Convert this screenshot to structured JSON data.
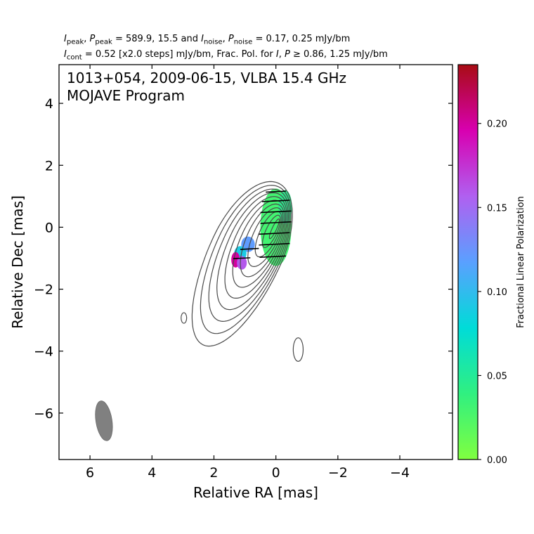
{
  "header": {
    "line1": {
      "i_peak_sym": "I",
      "i_peak_sub": "peak",
      "p_peak_sym": "P",
      "p_peak_sub": "peak",
      "peak_values": "= 589.9, 15.5 and",
      "i_noise_sym": "I",
      "i_noise_sub": "noise",
      "p_noise_sym": "P",
      "p_noise_sub": "noise",
      "noise_values": "= 0.17, 0.25 mJy/bm"
    },
    "line2": {
      "i_cont_sym": "I",
      "i_cont_sub": "cont",
      "cont_text": "= 0.52 [x2.0 steps] mJy/bm, Frac. Pol. for",
      "i_sym": "I",
      "p_sym": "P",
      "frac_text": "≥  0.86, 1.25 mJy/bm"
    }
  },
  "chart_data": {
    "type": "contour",
    "title_line1": "1013+054, 2009-06-15, VLBA 15.4 GHz",
    "title_line2": "MOJAVE Program",
    "xlabel": "Relative RA [mas]",
    "ylabel": "Relative Dec [mas]",
    "xlim": [
      7,
      -5.7
    ],
    "ylim": [
      -7.5,
      5.25
    ],
    "x_ticks": [
      6,
      4,
      2,
      0,
      -2,
      -4
    ],
    "x_tick_labels": [
      "6",
      "4",
      "2",
      "0",
      "−2",
      "−4"
    ],
    "y_ticks": [
      4,
      2,
      0,
      -2,
      -4,
      -6
    ],
    "y_tick_labels": [
      "4",
      "2",
      "0",
      "−2",
      "−4",
      "−6"
    ],
    "contours": {
      "base_level_mjy_per_beam": 0.52,
      "step_factor": 2.0,
      "peak_mjy_per_beam": 589.9,
      "color": "#4a4a4a"
    },
    "beam": {
      "ra": 5.55,
      "dec": -6.25,
      "major_mas": 1.3,
      "minor_mas": 0.52,
      "pa_deg": -9,
      "color": "#808080"
    },
    "secondary_contours": [
      {
        "ra": 2.97,
        "dec": -2.93,
        "rx": 0.09,
        "ry": 0.17
      },
      {
        "ra": -0.72,
        "dec": -3.95,
        "rx": 0.16,
        "ry": 0.38
      }
    ],
    "fractional_polarization_patches": [
      {
        "ra": 0.0,
        "dec": 0.0,
        "rx": 0.5,
        "ry": 1.25,
        "value": 0.03
      },
      {
        "ra": -0.3,
        "dec": 0.65,
        "rx": 0.22,
        "ry": 0.55,
        "value": 0.045
      },
      {
        "ra": 0.9,
        "dec": -0.55,
        "rx": 0.22,
        "ry": 0.25,
        "value": 0.12
      },
      {
        "ra": 1.15,
        "dec": -0.85,
        "rx": 0.2,
        "ry": 0.24,
        "value": 0.09
      },
      {
        "ra": 1.3,
        "dec": -1.05,
        "rx": 0.14,
        "ry": 0.25,
        "value": 0.2
      },
      {
        "ra": 1.1,
        "dec": -1.15,
        "rx": 0.16,
        "ry": 0.22,
        "value": 0.16
      }
    ],
    "evpa_vectors": [
      {
        "ra": 0.0,
        "dec": 1.15,
        "len": 0.65
      },
      {
        "ra": 0.0,
        "dec": 0.85,
        "len": 0.9
      },
      {
        "ra": 0.0,
        "dec": 0.5,
        "len": 1.0
      },
      {
        "ra": 0.0,
        "dec": 0.15,
        "len": 1.0
      },
      {
        "ra": 0.05,
        "dec": -0.2,
        "len": 1.0
      },
      {
        "ra": 0.05,
        "dec": -0.55,
        "len": 1.0
      },
      {
        "ra": 0.1,
        "dec": -0.95,
        "len": 0.85
      },
      {
        "ra": 0.85,
        "dec": -0.7,
        "len": 0.6
      },
      {
        "ra": 1.1,
        "dec": -1.0,
        "len": 0.55
      }
    ],
    "colorbar": {
      "label": "Fractional Linear Polarization",
      "min": 0.0,
      "max": 0.235,
      "ticks": [
        0.0,
        0.05,
        0.1,
        0.15,
        0.2
      ],
      "tick_labels": [
        "0.00",
        "0.05",
        "0.10",
        "0.15",
        "0.20"
      ],
      "colors": [
        "#80ff40",
        "#30f080",
        "#00dcd8",
        "#5aa0ff",
        "#b060f0",
        "#d800b0",
        "#a80c14"
      ]
    }
  }
}
